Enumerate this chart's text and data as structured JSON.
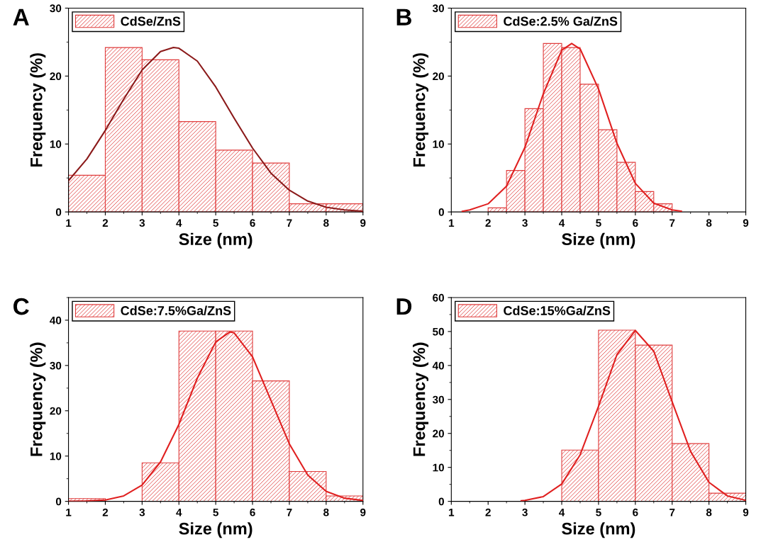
{
  "chart_data": [
    {
      "type": "histogram",
      "title": "A",
      "xlabel": "Size (nm)",
      "ylabel": "Frequency (%)",
      "xlim": [
        1,
        9
      ],
      "xticks": [
        1,
        2,
        3,
        4,
        5,
        6,
        7,
        8,
        9
      ],
      "ylim": [
        0,
        30
      ],
      "yticks": [
        0,
        10,
        20,
        30
      ],
      "legend": "top left",
      "series": [
        {
          "name": "CdSe/ZnS",
          "color": "#e03c3c",
          "bins": [
            1,
            2,
            3,
            4,
            5,
            6,
            7,
            8,
            9
          ],
          "values": [
            5.4,
            24.2,
            22.4,
            13.3,
            9.1,
            7.2,
            1.2,
            1.2
          ]
        },
        {
          "type": "line",
          "color": "#8b1a1a",
          "x": [
            1,
            1.5,
            2,
            2.5,
            3,
            3.5,
            3.85,
            4,
            4.5,
            5,
            5.5,
            6,
            6.5,
            7,
            7.5,
            8,
            8.5,
            9
          ],
          "values": [
            4.6,
            7.8,
            12.0,
            16.6,
            20.9,
            23.6,
            24.2,
            24.1,
            22.2,
            18.4,
            13.8,
            9.4,
            5.7,
            3.2,
            1.6,
            0.7,
            0.3,
            0.1
          ]
        }
      ]
    },
    {
      "type": "histogram",
      "title": "B",
      "xlabel": "Size (nm)",
      "ylabel": "Frequency (%)",
      "xlim": [
        1,
        9
      ],
      "xticks": [
        1,
        2,
        3,
        4,
        5,
        6,
        7,
        8,
        9
      ],
      "ylim": [
        0,
        30
      ],
      "yticks": [
        0,
        10,
        20,
        30
      ],
      "legend": "top left",
      "series": [
        {
          "name": "CdSe:2.5% Ga/ZnS",
          "color": "#e03c3c",
          "bins": [
            2,
            2.5,
            3,
            3.5,
            4,
            4.5,
            5,
            5.5,
            6,
            6.5,
            7
          ],
          "values": [
            0.6,
            6.1,
            15.2,
            24.8,
            24.2,
            18.8,
            12.1,
            7.3,
            3.0,
            1.2
          ]
        },
        {
          "type": "line",
          "color": "#e02020",
          "x": [
            1.3,
            1.5,
            2,
            2.5,
            3,
            3.5,
            4,
            4.27,
            4.5,
            5,
            5.5,
            6,
            6.5,
            7,
            7.25
          ],
          "values": [
            0.1,
            0.3,
            1.2,
            3.8,
            9.5,
            17.4,
            23.8,
            24.8,
            24.0,
            18.1,
            10.1,
            4.2,
            1.3,
            0.3,
            0.1
          ]
        }
      ]
    },
    {
      "type": "histogram",
      "title": "C",
      "xlabel": "Size (nm)",
      "ylabel": "Frequency (%)",
      "xlim": [
        1,
        9
      ],
      "xticks": [
        1,
        2,
        3,
        4,
        5,
        6,
        7,
        8,
        9
      ],
      "ylim": [
        0,
        45
      ],
      "yticks": [
        0,
        10,
        20,
        30,
        40
      ],
      "legend": "top left",
      "series": [
        {
          "name": "CdSe:7.5%Ga/ZnS",
          "color": "#e03c3c",
          "bins": [
            1,
            2,
            3,
            4,
            5,
            6,
            7,
            8,
            9
          ],
          "values": [
            0.6,
            0,
            8.5,
            37.6,
            37.6,
            26.6,
            6.6,
            1.2
          ]
        },
        {
          "type": "line",
          "color": "#e02020",
          "x": [
            1,
            1.5,
            2,
            2.5,
            3,
            3.5,
            4,
            4.5,
            5,
            5.38,
            5.5,
            6,
            6.5,
            7,
            7.5,
            8,
            8.5,
            9
          ],
          "values": [
            0,
            0.1,
            0.3,
            1.2,
            3.6,
            8.7,
            17.0,
            27.2,
            35.2,
            37.4,
            37.2,
            31.9,
            22.3,
            12.7,
            5.8,
            2.2,
            0.7,
            0.2
          ]
        }
      ]
    },
    {
      "type": "histogram",
      "title": "D",
      "xlabel": "Size (nm)",
      "ylabel": "Frequency (%)",
      "xlim": [
        1,
        9
      ],
      "xticks": [
        1,
        2,
        3,
        4,
        5,
        6,
        7,
        8,
        9
      ],
      "ylim": [
        0,
        60
      ],
      "yticks": [
        0,
        10,
        20,
        30,
        40,
        50,
        60
      ],
      "legend": "top left",
      "series": [
        {
          "name": "CdSe:15%Ga/ZnS",
          "color": "#e03c3c",
          "bins": [
            1,
            2,
            3,
            4,
            5,
            6,
            7,
            8,
            9
          ],
          "values": [
            0,
            0,
            0,
            15.1,
            50.4,
            46.0,
            17.0,
            2.4
          ]
        },
        {
          "type": "line",
          "color": "#e02020",
          "x": [
            2.9,
            3,
            3.5,
            4,
            4.5,
            5,
            5.5,
            6,
            6.5,
            7,
            7.5,
            8,
            8.5,
            9
          ],
          "values": [
            0.2,
            0.3,
            1.4,
            5.1,
            13.7,
            28.0,
            43.2,
            50.3,
            44.2,
            29.3,
            14.7,
            5.6,
            1.6,
            0.3
          ]
        }
      ]
    }
  ]
}
